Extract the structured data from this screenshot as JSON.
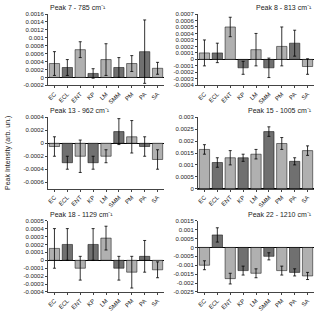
{
  "ylabel": "Peak Intensity (arb. un.)",
  "chart_data": [
    {
      "type": "bar",
      "title": "Peak 7 - 785 cm⁻¹",
      "categories": [
        "EC",
        "ECL",
        "ENT",
        "KP",
        "LM",
        "SMM",
        "PM",
        "PA",
        "SA"
      ],
      "values": [
        0.00035,
        0.00025,
        0.0007,
        0.0001,
        0.00045,
        0.00025,
        0.00035,
        0.00065,
        0.00023
      ],
      "errors": [
        0.0003,
        0.0002,
        0.0002,
        0.00012,
        0.0004,
        0.00025,
        0.0002,
        0.0008,
        0.00015
      ],
      "colors": [
        "#b0b0b0",
        "#707070",
        "#b0b0b0",
        "#707070",
        "#b0b0b0",
        "#707070",
        "#b0b0b0",
        "#707070",
        "#b0b0b0"
      ],
      "ylim": [
        -0.0002,
        0.0016
      ],
      "yticks": [
        -0.0002,
        0,
        0.0002,
        0.0004,
        0.0006,
        0.0008,
        0.001,
        0.0012,
        0.0014,
        0.0016
      ],
      "grid": false
    },
    {
      "type": "bar",
      "title": "Peak 8 - 813 cm⁻¹",
      "categories": [
        "EC",
        "ECL",
        "ENT",
        "KP",
        "LM",
        "SMM",
        "PM",
        "PA",
        "SA"
      ],
      "values": [
        0.0001,
        0.0001,
        0.0005,
        -0.00013,
        0.00015,
        -0.00013,
        0.0002,
        0.00025,
        -0.00011
      ],
      "errors": [
        0.0002,
        0.00015,
        0.00015,
        0.0001,
        0.00025,
        0.00015,
        0.0003,
        0.0002,
        0.00012
      ],
      "colors": [
        "#b0b0b0",
        "#707070",
        "#b0b0b0",
        "#707070",
        "#b0b0b0",
        "#707070",
        "#b0b0b0",
        "#707070",
        "#b0b0b0"
      ],
      "ylim": [
        -0.0004,
        0.0007
      ],
      "yticks": [
        -0.0004,
        -0.0003,
        -0.0002,
        -0.0001,
        0,
        0.0001,
        0.0002,
        0.0003,
        0.0004,
        0.0005,
        0.0006,
        0.0007
      ],
      "grid": false
    },
    {
      "type": "bar",
      "title": "Peak 13 - 962 cm⁻¹",
      "categories": [
        "EC",
        "ECL",
        "ENT",
        "KP",
        "LM",
        "SMM",
        "PM",
        "PA",
        "SA"
      ],
      "values": [
        -5e-05,
        -0.0003,
        -0.0002,
        -0.0003,
        -0.0002,
        0.00018,
        0.0001,
        -5e-05,
        -0.00025
      ],
      "errors": [
        0.00015,
        0.0001,
        0.00025,
        0.0001,
        0.0001,
        0.0002,
        0.00025,
        0.00015,
        0.00015
      ],
      "colors": [
        "#b0b0b0",
        "#707070",
        "#b0b0b0",
        "#707070",
        "#b0b0b0",
        "#707070",
        "#b0b0b0",
        "#707070",
        "#b0b0b0"
      ],
      "ylim": [
        -0.0007,
        0.0004
      ],
      "yticks": [
        -0.0006,
        -0.0004,
        -0.0002,
        0,
        0.0002,
        0.0004
      ],
      "grid": false
    },
    {
      "type": "bar",
      "title": "Peak 15 - 1005 cm⁻¹",
      "categories": [
        "EC",
        "ECL",
        "ENT",
        "KP",
        "LM",
        "SMM",
        "PM",
        "PA",
        "SA"
      ],
      "values": [
        0.00165,
        0.0011,
        0.0013,
        0.0013,
        0.00145,
        0.0024,
        0.0019,
        0.00115,
        0.0016
      ],
      "errors": [
        0.0002,
        0.0002,
        0.0003,
        0.00015,
        0.0002,
        0.0002,
        0.00025,
        0.00015,
        0.0002
      ],
      "colors": [
        "#b0b0b0",
        "#707070",
        "#b0b0b0",
        "#707070",
        "#b0b0b0",
        "#707070",
        "#b0b0b0",
        "#707070",
        "#b0b0b0"
      ],
      "ylim": [
        0,
        0.003
      ],
      "yticks": [
        0,
        0.0005,
        0.001,
        0.0015,
        0.002,
        0.0025,
        0.003
      ],
      "grid": false
    },
    {
      "type": "bar",
      "title": "Peak 18 - 1129 cm⁻¹",
      "categories": [
        "EC",
        "ECL",
        "ENT",
        "KP",
        "LM",
        "SMM",
        "PM",
        "PA",
        "SA"
      ],
      "values": [
        0.00015,
        0.0002,
        -0.0001,
        0.0002,
        0.00028,
        -0.0001,
        -0.00015,
        5e-05,
        -0.00012
      ],
      "errors": [
        0.00025,
        0.0002,
        0.00015,
        0.0002,
        0.00015,
        0.00015,
        0.0002,
        0.0002,
        0.0001
      ],
      "colors": [
        "#b0b0b0",
        "#707070",
        "#b0b0b0",
        "#707070",
        "#b0b0b0",
        "#707070",
        "#b0b0b0",
        "#707070",
        "#b0b0b0"
      ],
      "ylim": [
        -0.0004,
        0.0005
      ],
      "yticks": [
        -0.0004,
        -0.0003,
        -0.0002,
        -0.0001,
        0,
        0.0001,
        0.0002,
        0.0003,
        0.0004,
        0.0005
      ],
      "grid": false
    },
    {
      "type": "bar",
      "title": "Peak 22 - 1210 cm⁻¹",
      "categories": [
        "EC",
        "ECL",
        "ENT",
        "KP",
        "LM",
        "SMM",
        "PM",
        "PA",
        "SA"
      ],
      "values": [
        -0.001,
        0.0007,
        -0.00175,
        -0.0013,
        -0.00145,
        -0.0005,
        -0.0013,
        -0.0014,
        -0.0016
      ],
      "errors": [
        0.00025,
        0.0004,
        0.0003,
        0.00025,
        0.00025,
        0.0002,
        0.00025,
        0.0002,
        0.0002
      ],
      "colors": [
        "#b0b0b0",
        "#707070",
        "#b0b0b0",
        "#707070",
        "#b0b0b0",
        "#707070",
        "#b0b0b0",
        "#707070",
        "#b0b0b0"
      ],
      "ylim": [
        -0.0025,
        0.0015
      ],
      "yticks": [
        -0.0025,
        -0.002,
        -0.0015,
        -0.001,
        -0.0005,
        0,
        0.0005,
        0.001,
        0.0015
      ],
      "grid": false
    }
  ]
}
